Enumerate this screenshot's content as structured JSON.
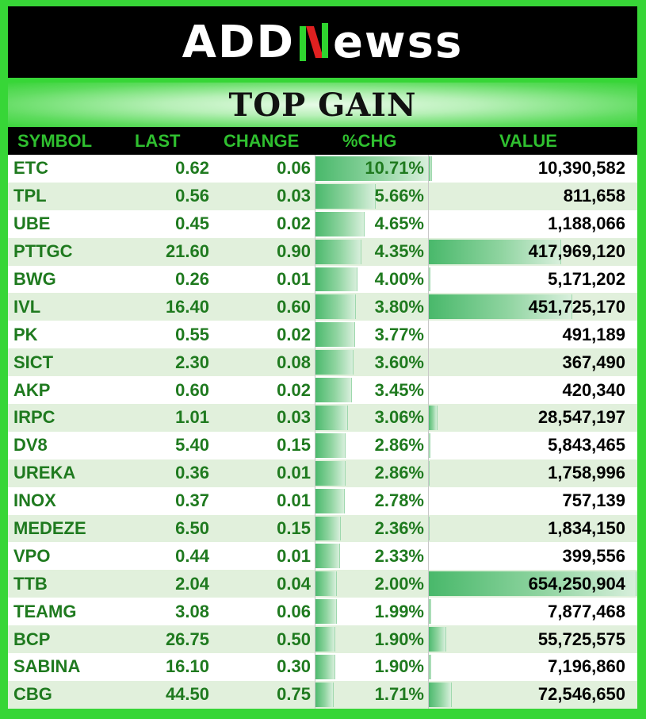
{
  "logo": {
    "part1": "ADD",
    "part2": "N",
    "part3": "ewss"
  },
  "title": "TOP GAIN",
  "headers": {
    "symbol": "SYMBOL",
    "last": "LAST",
    "change": "CHANGE",
    "pctchg": "%CHG",
    "value": "VALUE"
  },
  "colors": {
    "frame": "#37d637",
    "header_bg": "#000000",
    "header_text": "#2fbf2f",
    "text_green": "#1f7a1f",
    "alt_row": "#e1f0dc"
  },
  "rows": [
    {
      "symbol": "ETC",
      "last": "0.62",
      "change": "0.06",
      "pct": "10.71%",
      "value": "10,390,582",
      "pct_num": 10.71,
      "value_num": 10390582
    },
    {
      "symbol": "TPL",
      "last": "0.56",
      "change": "0.03",
      "pct": "5.66%",
      "value": "811,658",
      "pct_num": 5.66,
      "value_num": 811658
    },
    {
      "symbol": "UBE",
      "last": "0.45",
      "change": "0.02",
      "pct": "4.65%",
      "value": "1,188,066",
      "pct_num": 4.65,
      "value_num": 1188066
    },
    {
      "symbol": "PTTGC",
      "last": "21.60",
      "change": "0.90",
      "pct": "4.35%",
      "value": "417,969,120",
      "pct_num": 4.35,
      "value_num": 417969120
    },
    {
      "symbol": "BWG",
      "last": "0.26",
      "change": "0.01",
      "pct": "4.00%",
      "value": "5,171,202",
      "pct_num": 4.0,
      "value_num": 5171202
    },
    {
      "symbol": "IVL",
      "last": "16.40",
      "change": "0.60",
      "pct": "3.80%",
      "value": "451,725,170",
      "pct_num": 3.8,
      "value_num": 451725170
    },
    {
      "symbol": "PK",
      "last": "0.55",
      "change": "0.02",
      "pct": "3.77%",
      "value": "491,189",
      "pct_num": 3.77,
      "value_num": 491189
    },
    {
      "symbol": "SICT",
      "last": "2.30",
      "change": "0.08",
      "pct": "3.60%",
      "value": "367,490",
      "pct_num": 3.6,
      "value_num": 367490
    },
    {
      "symbol": "AKP",
      "last": "0.60",
      "change": "0.02",
      "pct": "3.45%",
      "value": "420,340",
      "pct_num": 3.45,
      "value_num": 420340
    },
    {
      "symbol": "IRPC",
      "last": "1.01",
      "change": "0.03",
      "pct": "3.06%",
      "value": "28,547,197",
      "pct_num": 3.06,
      "value_num": 28547197
    },
    {
      "symbol": "DV8",
      "last": "5.40",
      "change": "0.15",
      "pct": "2.86%",
      "value": "5,843,465",
      "pct_num": 2.86,
      "value_num": 5843465
    },
    {
      "symbol": "UREKA",
      "last": "0.36",
      "change": "0.01",
      "pct": "2.86%",
      "value": "1,758,996",
      "pct_num": 2.86,
      "value_num": 1758996
    },
    {
      "symbol": "INOX",
      "last": "0.37",
      "change": "0.01",
      "pct": "2.78%",
      "value": "757,139",
      "pct_num": 2.78,
      "value_num": 757139
    },
    {
      "symbol": "MEDEZE",
      "last": "6.50",
      "change": "0.15",
      "pct": "2.36%",
      "value": "1,834,150",
      "pct_num": 2.36,
      "value_num": 1834150
    },
    {
      "symbol": "VPO",
      "last": "0.44",
      "change": "0.01",
      "pct": "2.33%",
      "value": "399,556",
      "pct_num": 2.33,
      "value_num": 399556
    },
    {
      "symbol": "TTB",
      "last": "2.04",
      "change": "0.04",
      "pct": "2.00%",
      "value": "654,250,904",
      "pct_num": 2.0,
      "value_num": 654250904
    },
    {
      "symbol": "TEAMG",
      "last": "3.08",
      "change": "0.06",
      "pct": "1.99%",
      "value": "7,877,468",
      "pct_num": 1.99,
      "value_num": 7877468
    },
    {
      "symbol": "BCP",
      "last": "26.75",
      "change": "0.50",
      "pct": "1.90%",
      "value": "55,725,575",
      "pct_num": 1.9,
      "value_num": 55725575
    },
    {
      "symbol": "SABINA",
      "last": "16.10",
      "change": "0.30",
      "pct": "1.90%",
      "value": "7,196,860",
      "pct_num": 1.9,
      "value_num": 7196860
    },
    {
      "symbol": "CBG",
      "last": "44.50",
      "change": "0.75",
      "pct": "1.71%",
      "value": "72,546,650",
      "pct_num": 1.71,
      "value_num": 72546650
    }
  ]
}
